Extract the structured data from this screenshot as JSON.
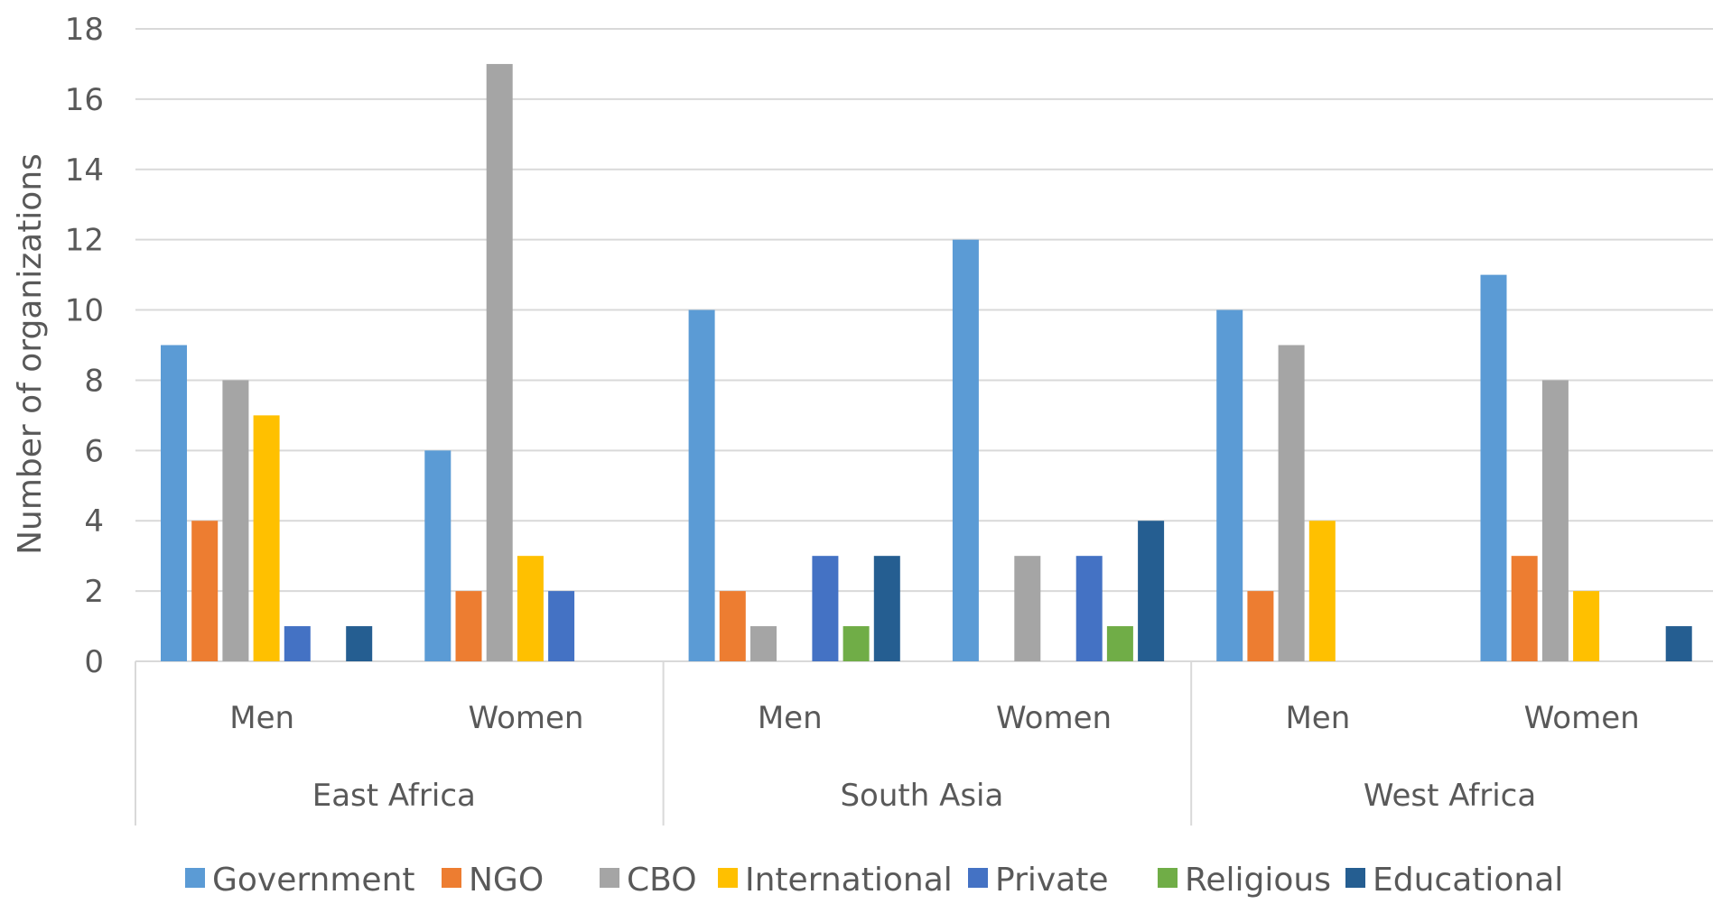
{
  "chart_data": {
    "type": "bar",
    "ylabel": "Number of organizations",
    "ylim": [
      0,
      18
    ],
    "yticks": [
      0,
      2,
      4,
      6,
      8,
      10,
      12,
      14,
      16,
      18
    ],
    "grid": true,
    "legend_position": "bottom",
    "groups": [
      {
        "name": "East Africa",
        "categories": [
          "Men",
          "Women"
        ]
      },
      {
        "name": "South Asia",
        "categories": [
          "Men",
          "Women"
        ]
      },
      {
        "name": "West Africa",
        "categories": [
          "Men",
          "Women"
        ]
      }
    ],
    "categories": [
      "Men",
      "Women",
      "Men",
      "Women",
      "Men",
      "Women"
    ],
    "series": [
      {
        "name": "Government",
        "color": "#5b9bd5",
        "values": [
          9,
          6,
          10,
          12,
          10,
          11
        ]
      },
      {
        "name": "NGO",
        "color": "#ed7d31",
        "values": [
          4,
          2,
          2,
          0,
          2,
          3
        ]
      },
      {
        "name": "CBO",
        "color": "#a5a5a5",
        "values": [
          8,
          17,
          1,
          3,
          9,
          8
        ]
      },
      {
        "name": "International",
        "color": "#ffc000",
        "values": [
          7,
          3,
          0,
          0,
          4,
          2
        ]
      },
      {
        "name": "Private",
        "color": "#4472c4",
        "values": [
          1,
          2,
          3,
          3,
          0,
          0
        ]
      },
      {
        "name": "Religious",
        "color": "#70ad47",
        "values": [
          0,
          0,
          1,
          1,
          0,
          0
        ]
      },
      {
        "name": "Educational",
        "color": "#255e91",
        "values": [
          1,
          0,
          3,
          4,
          0,
          1
        ]
      }
    ]
  }
}
